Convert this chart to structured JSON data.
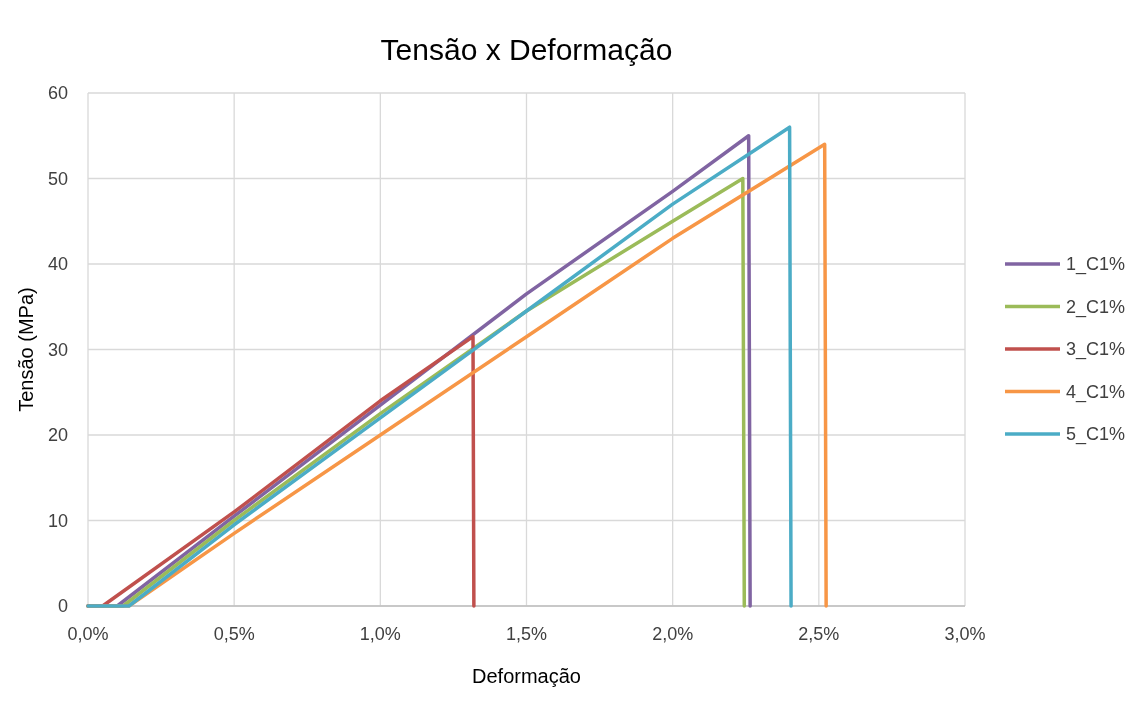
{
  "chart_data": {
    "type": "line",
    "title": "Tensão x Deformação",
    "xlabel": "Deformação",
    "ylabel": "Tensão (MPa)",
    "xlim": [
      0,
      3
    ],
    "xticks": [
      {
        "value": 0,
        "label": "0,0%"
      },
      {
        "value": 0.5,
        "label": "0,5%"
      },
      {
        "value": 1,
        "label": "1,0%"
      },
      {
        "value": 1.5,
        "label": "1,5%"
      },
      {
        "value": 2,
        "label": "2,0%"
      },
      {
        "value": 2.5,
        "label": "2,5%"
      },
      {
        "value": 3,
        "label": "3,0%"
      }
    ],
    "ylim": [
      0,
      60
    ],
    "yticks": [
      0,
      10,
      20,
      30,
      40,
      50,
      60
    ],
    "grid": true,
    "legend": "right",
    "marker": "none",
    "line_style": "solid",
    "series": [
      {
        "name": "1_C1%",
        "color": "#8064a2",
        "x": [
          0,
          0.1,
          0.5,
          1.0,
          1.5,
          2.0,
          2.26,
          2.265
        ],
        "values": [
          0,
          0,
          10.5,
          23.5,
          36.5,
          48.5,
          55,
          0
        ]
      },
      {
        "name": "2_C1%",
        "color": "#9bbb59",
        "x": [
          0,
          0.12,
          0.5,
          1.0,
          1.5,
          2.0,
          2.24,
          2.245
        ],
        "values": [
          0,
          0,
          10,
          22.5,
          34.5,
          45,
          50,
          0
        ]
      },
      {
        "name": "3_C1%",
        "color": "#c0504d",
        "x": [
          0,
          0.05,
          0.5,
          1.0,
          1.317,
          1.32
        ],
        "values": [
          0,
          0,
          11,
          24,
          31.5,
          0
        ]
      },
      {
        "name": "4_C1%",
        "color": "#f79646",
        "x": [
          0,
          0.14,
          0.5,
          1.0,
          1.5,
          2.0,
          2.52,
          2.525
        ],
        "values": [
          0,
          0,
          8.5,
          20,
          31.5,
          43,
          54,
          0
        ]
      },
      {
        "name": "5_C1%",
        "color": "#4bacc6",
        "x": [
          0,
          0.14,
          0.5,
          1.0,
          1.5,
          2.0,
          2.4,
          2.405
        ],
        "values": [
          0,
          0,
          9.5,
          22,
          34.5,
          47,
          56,
          0
        ]
      }
    ]
  }
}
